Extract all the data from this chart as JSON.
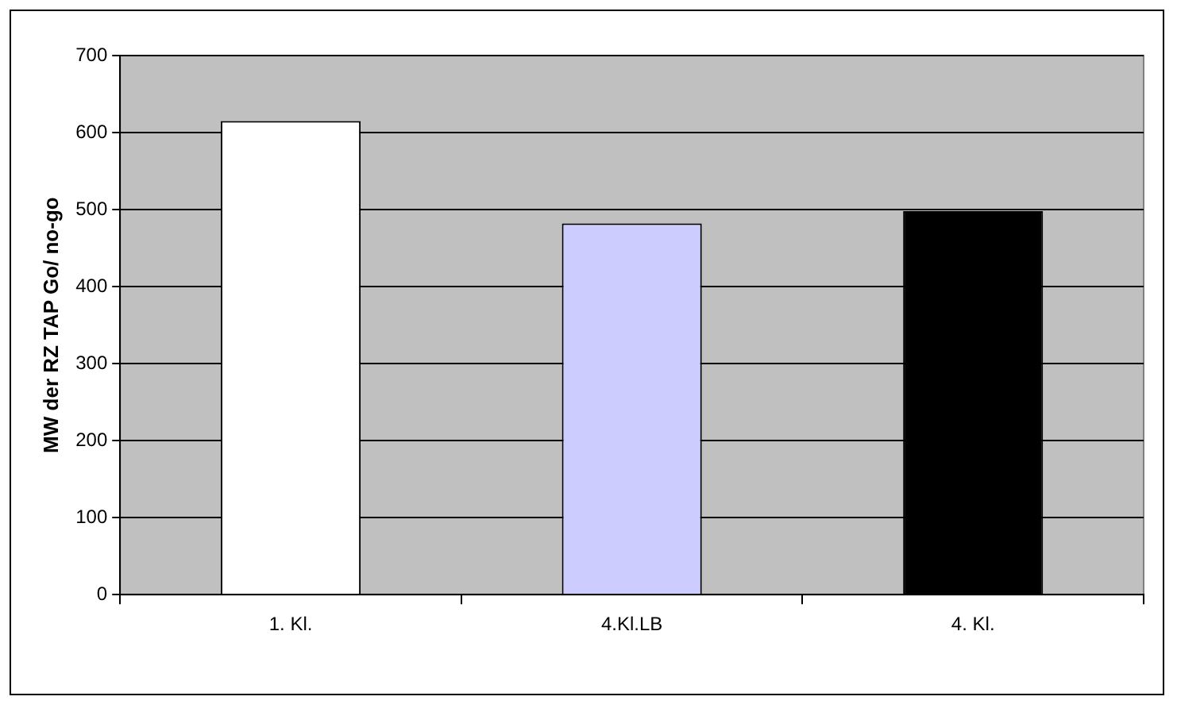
{
  "chart_data": {
    "type": "bar",
    "ylabel": "MW der RZ TAP Go/ no-go",
    "categories": [
      "1. Kl.",
      "4.Kl.LB",
      "4. Kl."
    ],
    "values": [
      615,
      482,
      498
    ],
    "colors": [
      "#ffffff",
      "#ccccff",
      "#000000"
    ],
    "ylim": [
      0,
      700
    ],
    "yticks": [
      0,
      100,
      200,
      300,
      400,
      500,
      600,
      700
    ],
    "grid": "y",
    "legend": false
  }
}
